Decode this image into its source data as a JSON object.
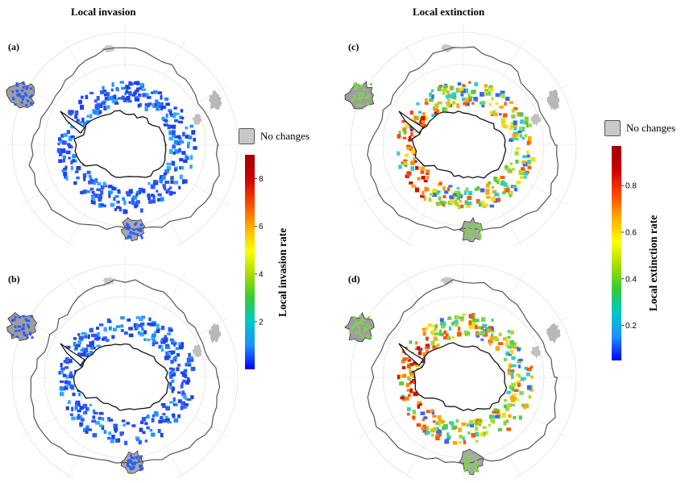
{
  "titles": {
    "invasion": "Local invasion",
    "extinction": "Local extinction"
  },
  "panels": [
    "(a)",
    "(b)",
    "(c)",
    "(d)"
  ],
  "legend": {
    "no_changes": "No changes",
    "no_changes_color": "#c8c8c8"
  },
  "colorbars": {
    "invasion": {
      "title": "Local invasion rate",
      "ticks": [
        "2",
        "4",
        "6",
        "8"
      ],
      "range": [
        0,
        9
      ]
    },
    "extinction": {
      "title": "Local extinction rate",
      "ticks": [
        "0.2",
        "0.4",
        "0.6",
        "0.8"
      ],
      "range": [
        0.05,
        0.97
      ]
    },
    "colormap": [
      "#0000ff",
      "#1e90ff",
      "#00c8c8",
      "#33cc33",
      "#aadd00",
      "#ffff00",
      "#ffaa00",
      "#ff4400",
      "#cc0000",
      "#a00000"
    ]
  },
  "chart_data": [
    {
      "type": "heatmap",
      "panel": "(a)",
      "quantity": "Local invasion rate",
      "colors": {
        "dominant": "#2a5cff"
      }
    },
    {
      "type": "heatmap",
      "panel": "(b)",
      "quantity": "Local invasion rate",
      "colors": {
        "dominant": "#2a5cff"
      }
    },
    {
      "type": "heatmap",
      "panel": "(c)",
      "quantity": "Local extinction rate",
      "colors": {
        "dominant": "#7fd34a"
      }
    },
    {
      "type": "heatmap",
      "panel": "(d)",
      "quantity": "Local extinction rate",
      "colors": {
        "dominant": "#7fd34a"
      }
    }
  ]
}
